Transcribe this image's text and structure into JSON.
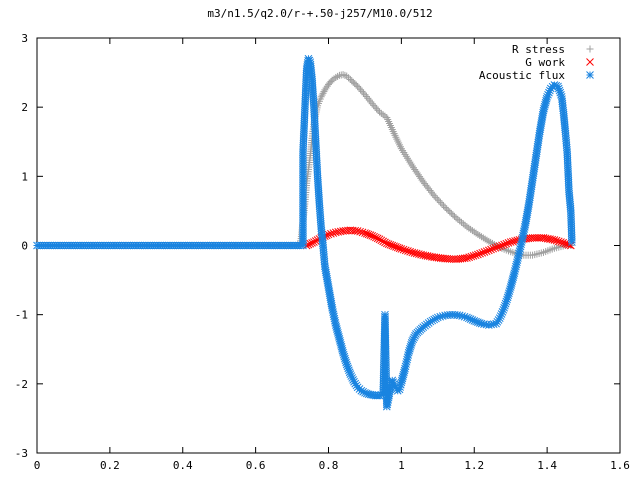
{
  "chart_data": {
    "type": "scatter",
    "title": "m3/n1.5/q2.0/r-+.50-j257/M10.0/512",
    "xlabel": "",
    "ylabel": "",
    "xlim": [
      0,
      1.6
    ],
    "ylim": [
      -3,
      3
    ],
    "x_ticks": [
      "0",
      "0.2",
      "0.4",
      "0.6",
      "0.8",
      "1",
      "1.2",
      "1.4",
      "1.6"
    ],
    "y_ticks": [
      "3",
      "2",
      "1",
      "0",
      "-1",
      "-2",
      "-3"
    ],
    "grid": false,
    "legend_position": "top-right",
    "series": [
      {
        "name": "R stress",
        "marker": "plus",
        "color": "#a0a0a0",
        "points": [
          [
            0.0,
            0
          ],
          [
            0.72,
            0
          ],
          [
            0.725,
            0.1
          ],
          [
            0.73,
            0.35
          ],
          [
            0.735,
            0.6
          ],
          [
            0.74,
            0.9
          ],
          [
            0.745,
            1.1
          ],
          [
            0.75,
            1.3
          ],
          [
            0.755,
            1.55
          ],
          [
            0.76,
            1.75
          ],
          [
            0.765,
            1.9
          ],
          [
            0.77,
            2.02
          ],
          [
            0.78,
            2.15
          ],
          [
            0.79,
            2.25
          ],
          [
            0.8,
            2.33
          ],
          [
            0.81,
            2.39
          ],
          [
            0.82,
            2.43
          ],
          [
            0.83,
            2.46
          ],
          [
            0.84,
            2.47
          ],
          [
            0.85,
            2.45
          ],
          [
            0.86,
            2.4
          ],
          [
            0.88,
            2.3
          ],
          [
            0.9,
            2.18
          ],
          [
            0.92,
            2.05
          ],
          [
            0.94,
            1.93
          ],
          [
            0.96,
            1.85
          ],
          [
            0.98,
            1.62
          ],
          [
            1.0,
            1.4
          ],
          [
            1.03,
            1.15
          ],
          [
            1.06,
            0.92
          ],
          [
            1.09,
            0.72
          ],
          [
            1.12,
            0.55
          ],
          [
            1.15,
            0.4
          ],
          [
            1.18,
            0.27
          ],
          [
            1.21,
            0.16
          ],
          [
            1.24,
            0.06
          ],
          [
            1.27,
            -0.03
          ],
          [
            1.3,
            -0.09
          ],
          [
            1.33,
            -0.14
          ],
          [
            1.36,
            -0.14
          ],
          [
            1.39,
            -0.1
          ],
          [
            1.42,
            -0.04
          ],
          [
            1.45,
            0.0
          ],
          [
            1.465,
            0.0
          ]
        ]
      },
      {
        "name": "G work",
        "marker": "cross",
        "color": "#ff0000",
        "points": [
          [
            0.74,
            0.0
          ],
          [
            0.76,
            0.05
          ],
          [
            0.78,
            0.11
          ],
          [
            0.8,
            0.16
          ],
          [
            0.82,
            0.19
          ],
          [
            0.84,
            0.21
          ],
          [
            0.86,
            0.22
          ],
          [
            0.88,
            0.21
          ],
          [
            0.9,
            0.18
          ],
          [
            0.92,
            0.14
          ],
          [
            0.94,
            0.09
          ],
          [
            0.96,
            0.03
          ],
          [
            0.98,
            -0.01
          ],
          [
            1.0,
            -0.05
          ],
          [
            1.03,
            -0.1
          ],
          [
            1.06,
            -0.14
          ],
          [
            1.09,
            -0.17
          ],
          [
            1.12,
            -0.19
          ],
          [
            1.15,
            -0.2
          ],
          [
            1.18,
            -0.18
          ],
          [
            1.21,
            -0.13
          ],
          [
            1.24,
            -0.07
          ],
          [
            1.27,
            -0.01
          ],
          [
            1.3,
            0.05
          ],
          [
            1.33,
            0.09
          ],
          [
            1.36,
            0.11
          ],
          [
            1.39,
            0.11
          ],
          [
            1.42,
            0.08
          ],
          [
            1.45,
            0.03
          ],
          [
            1.465,
            0.0
          ]
        ]
      },
      {
        "name": "Acoustic flux",
        "marker": "star",
        "color": "#1a84e0",
        "points": [
          [
            0.0,
            0
          ],
          [
            0.73,
            0
          ],
          [
            0.73,
            1.35
          ],
          [
            0.74,
            2.55
          ],
          [
            0.745,
            2.7
          ],
          [
            0.75,
            2.65
          ],
          [
            0.755,
            2.4
          ],
          [
            0.76,
            2.0
          ],
          [
            0.765,
            1.5
          ],
          [
            0.77,
            1.0
          ],
          [
            0.775,
            0.6
          ],
          [
            0.78,
            0.25
          ],
          [
            0.785,
            0.0
          ],
          [
            0.79,
            -0.3
          ],
          [
            0.8,
            -0.6
          ],
          [
            0.81,
            -0.9
          ],
          [
            0.82,
            -1.15
          ],
          [
            0.83,
            -1.35
          ],
          [
            0.84,
            -1.55
          ],
          [
            0.85,
            -1.72
          ],
          [
            0.86,
            -1.86
          ],
          [
            0.87,
            -1.97
          ],
          [
            0.88,
            -2.05
          ],
          [
            0.89,
            -2.1
          ],
          [
            0.9,
            -2.13
          ],
          [
            0.91,
            -2.15
          ],
          [
            0.92,
            -2.16
          ],
          [
            0.93,
            -2.17
          ],
          [
            0.94,
            -2.17
          ],
          [
            0.95,
            -2.15
          ],
          [
            0.955,
            -1.0
          ],
          [
            0.96,
            -2.33
          ],
          [
            0.965,
            -2.2
          ],
          [
            0.97,
            -2.05
          ],
          [
            0.975,
            -1.95
          ],
          [
            0.98,
            -2.0
          ],
          [
            0.985,
            -2.05
          ],
          [
            0.99,
            -2.1
          ],
          [
            0.995,
            -2.08
          ],
          [
            1.0,
            -1.98
          ],
          [
            1.01,
            -1.78
          ],
          [
            1.02,
            -1.55
          ],
          [
            1.03,
            -1.38
          ],
          [
            1.04,
            -1.28
          ],
          [
            1.06,
            -1.18
          ],
          [
            1.08,
            -1.1
          ],
          [
            1.1,
            -1.04
          ],
          [
            1.12,
            -1.01
          ],
          [
            1.14,
            -1.0
          ],
          [
            1.16,
            -1.01
          ],
          [
            1.18,
            -1.04
          ],
          [
            1.2,
            -1.09
          ],
          [
            1.22,
            -1.13
          ],
          [
            1.24,
            -1.15
          ],
          [
            1.26,
            -1.13
          ],
          [
            1.27,
            -1.05
          ],
          [
            1.28,
            -0.93
          ],
          [
            1.29,
            -0.78
          ],
          [
            1.3,
            -0.6
          ],
          [
            1.31,
            -0.4
          ],
          [
            1.32,
            -0.18
          ],
          [
            1.33,
            0.05
          ],
          [
            1.34,
            0.3
          ],
          [
            1.35,
            0.6
          ],
          [
            1.36,
            0.95
          ],
          [
            1.37,
            1.3
          ],
          [
            1.38,
            1.65
          ],
          [
            1.39,
            1.95
          ],
          [
            1.4,
            2.15
          ],
          [
            1.41,
            2.27
          ],
          [
            1.42,
            2.32
          ],
          [
            1.43,
            2.3
          ],
          [
            1.44,
            2.15
          ],
          [
            1.445,
            1.92
          ],
          [
            1.45,
            1.65
          ],
          [
            1.455,
            1.35
          ],
          [
            1.46,
            0.78
          ],
          [
            1.465,
            0.5
          ],
          [
            1.468,
            0.05
          ]
        ]
      }
    ]
  }
}
